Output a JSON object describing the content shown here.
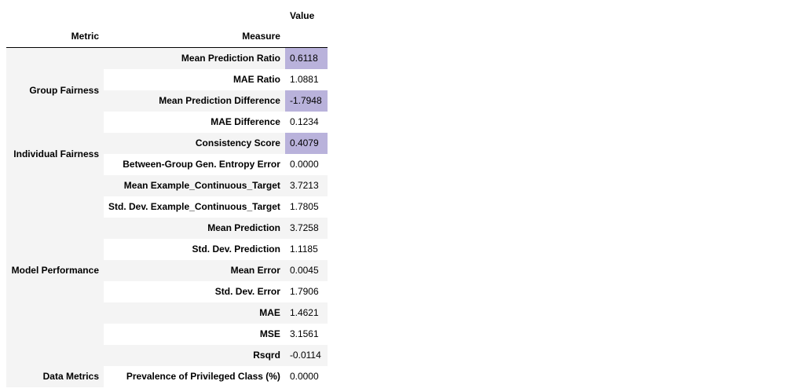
{
  "header": {
    "value_label": "Value",
    "metric_label": "Metric",
    "measure_label": "Measure"
  },
  "highlight_color": "#b9b2db",
  "stripe_color": "#f4f4f4",
  "groups": [
    {
      "metric": "Group Fairness",
      "rows": [
        {
          "measure": "Mean Prediction Ratio",
          "value": "0.6118",
          "highlight": true
        },
        {
          "measure": "MAE Ratio",
          "value": "1.0881",
          "highlight": false
        },
        {
          "measure": "Mean Prediction Difference",
          "value": "-1.7948",
          "highlight": true
        },
        {
          "measure": "MAE Difference",
          "value": "0.1234",
          "highlight": false
        }
      ]
    },
    {
      "metric": "Individual Fairness",
      "rows": [
        {
          "measure": "Consistency Score",
          "value": "0.4079",
          "highlight": true
        },
        {
          "measure": "Between-Group Gen. Entropy Error",
          "value": "0.0000",
          "highlight": false
        }
      ]
    },
    {
      "metric": "Model Performance",
      "rows": [
        {
          "measure": "Mean Example_Continuous_Target",
          "value": "3.7213",
          "highlight": false
        },
        {
          "measure": "Std. Dev. Example_Continuous_Target",
          "value": "1.7805",
          "highlight": false
        },
        {
          "measure": "Mean Prediction",
          "value": "3.7258",
          "highlight": false
        },
        {
          "measure": "Std. Dev. Prediction",
          "value": "1.1185",
          "highlight": false
        },
        {
          "measure": "Mean Error",
          "value": "0.0045",
          "highlight": false
        },
        {
          "measure": "Std. Dev. Error",
          "value": "1.7906",
          "highlight": false
        },
        {
          "measure": "MAE",
          "value": "1.4621",
          "highlight": false
        },
        {
          "measure": "MSE",
          "value": "3.1561",
          "highlight": false
        },
        {
          "measure": "Rsqrd",
          "value": "-0.0114",
          "highlight": false
        }
      ]
    },
    {
      "metric": "Data Metrics",
      "rows": [
        {
          "measure": "Prevalence of Privileged Class (%)",
          "value": "0.0000",
          "highlight": false
        }
      ]
    }
  ]
}
